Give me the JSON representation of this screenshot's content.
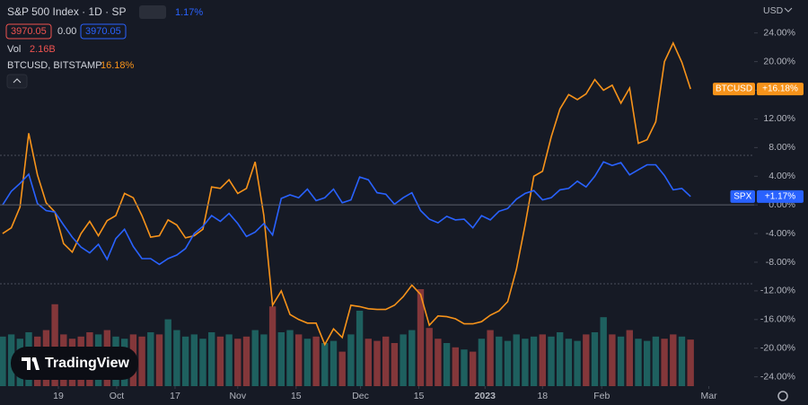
{
  "header": {
    "title": "S&P 500 Index · 1D · SP",
    "change": "1.17%",
    "price_box_1": "3970.05",
    "price_mid": "0.00",
    "price_box_2": "3970.05",
    "volume_label": "Vol",
    "volume_value": "2.16B",
    "compare_symbol": "BTCUSD, BITSTAMP",
    "compare_change": "16.18%",
    "currency": "USD"
  },
  "logo": "TradingView",
  "chart_data": {
    "type": "line",
    "xlim": [
      -0.3,
      86.3
    ],
    "xticks": [
      {
        "value": 6.4,
        "label": "19"
      },
      {
        "value": 13.1,
        "label": "Oct"
      },
      {
        "value": 19.8,
        "label": "17"
      },
      {
        "value": 27,
        "label": "Nov"
      },
      {
        "value": 33.7,
        "label": "15"
      },
      {
        "value": 41.1,
        "label": "Dec"
      },
      {
        "value": 47.8,
        "label": "15"
      },
      {
        "value": 55.4,
        "label": "2023"
      },
      {
        "value": 62,
        "label": "18"
      },
      {
        "value": 68.8,
        "label": "Feb"
      },
      {
        "value": 81.1,
        "label": "Mar"
      }
    ],
    "ylim": [
      -25.3,
      28.6
    ],
    "yticks": [
      {
        "value": 24,
        "label": "24.00%"
      },
      {
        "value": 20,
        "label": "20.00%"
      },
      {
        "value": 16,
        "label": "16.00%"
      },
      {
        "value": 12,
        "label": "12.00%"
      },
      {
        "value": 8,
        "label": "8.00%"
      },
      {
        "value": 4,
        "label": "4.00%"
      },
      {
        "value": 0,
        "label": "0.00%"
      },
      {
        "value": -4,
        "label": "-4.00%"
      },
      {
        "value": -8,
        "label": "-8.00%"
      },
      {
        "value": -12,
        "label": "-12.00%"
      },
      {
        "value": -16,
        "label": "-16.00%"
      },
      {
        "value": -20,
        "label": "-20.00%"
      },
      {
        "value": -24,
        "label": "-24.00%"
      }
    ],
    "grid": false,
    "series": [
      {
        "name": "BTCUSD",
        "color": "#f7931a",
        "last_label": "+16.18%",
        "values": [
          -4.0,
          -3.2,
          -0.3,
          10.0,
          4.2,
          0.3,
          -1.0,
          -5.4,
          -6.6,
          -4.0,
          -2.3,
          -4.3,
          -2.2,
          -1.5,
          1.6,
          1.0,
          -1.5,
          -4.5,
          -4.3,
          -2.1,
          -2.8,
          -4.6,
          -4.3,
          -3.4,
          2.5,
          2.3,
          3.5,
          1.6,
          2.3,
          6.0,
          -1.5,
          -14.0,
          -12.0,
          -15.3,
          -16.0,
          -16.5,
          -16.5,
          -19.5,
          -17.3,
          -18.5,
          -14.0,
          -14.2,
          -14.5,
          -14.6,
          -14.6,
          -14.0,
          -12.8,
          -11.2,
          -12.5,
          -16.8,
          -15.5,
          -15.6,
          -15.9,
          -16.6,
          -16.6,
          -16.3,
          -15.4,
          -14.8,
          -13.5,
          -9.0,
          -2.8,
          4.0,
          4.7,
          9.5,
          13.4,
          15.4,
          14.7,
          15.5,
          17.5,
          16.0,
          16.7,
          14.2,
          16.3,
          8.6,
          9.1,
          11.6,
          20.0,
          22.6,
          19.9,
          16.18
        ]
      },
      {
        "name": "SPX",
        "color": "#2962ff",
        "last_label": "+1.17%",
        "values": [
          0,
          1.9,
          3.0,
          4.3,
          0.2,
          -0.8,
          -1.0,
          -2.8,
          -4.5,
          -5.9,
          -6.7,
          -5.5,
          -7.6,
          -4.7,
          -3.4,
          -5.8,
          -7.5,
          -7.5,
          -8.3,
          -7.5,
          -7.0,
          -6.1,
          -4.0,
          -3.0,
          -1.5,
          -2.3,
          -1.2,
          -2.6,
          -4.4,
          -3.8,
          -2.6,
          -4.2,
          0.9,
          1.4,
          1.0,
          2.2,
          0.6,
          1.0,
          2.2,
          0.3,
          0.7,
          3.9,
          3.5,
          1.7,
          1.5,
          0.1,
          1.0,
          1.7,
          -0.8,
          -2.0,
          -2.5,
          -1.6,
          -2.1,
          -2.0,
          -3.2,
          -1.5,
          -2.1,
          -0.9,
          -0.5,
          0.8,
          1.6,
          2.0,
          0.7,
          1.0,
          2.1,
          2.3,
          3.3,
          2.5,
          4.0,
          6.0,
          5.5,
          5.9,
          4.2,
          4.9,
          5.6,
          5.6,
          4.1,
          2.1,
          2.3,
          1.17
        ]
      }
    ],
    "volume": {
      "up_color": "#26a69a",
      "down_color": "#ef5350",
      "values": [
        2.3,
        2.4,
        2.2,
        2.5,
        2.3,
        2.6,
        3.8,
        2.4,
        2.2,
        2.3,
        2.5,
        2.4,
        2.6,
        2.3,
        2.2,
        2.4,
        2.3,
        2.5,
        2.4,
        3.1,
        2.6,
        2.3,
        2.4,
        2.2,
        2.5,
        2.3,
        2.4,
        2.2,
        2.3,
        2.6,
        2.4,
        3.7,
        2.5,
        2.6,
        2.4,
        2.2,
        2.3,
        2.0,
        2.1,
        1.6,
        2.4,
        3.5,
        2.2,
        2.1,
        2.3,
        2.0,
        2.4,
        2.6,
        4.5,
        2.7,
        2.2,
        2.0,
        1.8,
        1.7,
        1.6,
        2.2,
        2.6,
        2.3,
        2.1,
        2.4,
        2.2,
        2.3,
        2.4,
        2.3,
        2.5,
        2.2,
        2.1,
        2.4,
        2.5,
        3.2,
        2.4,
        2.3,
        2.6,
        2.2,
        2.1,
        2.3,
        2.2,
        2.4,
        2.3,
        2.16
      ]
    }
  }
}
